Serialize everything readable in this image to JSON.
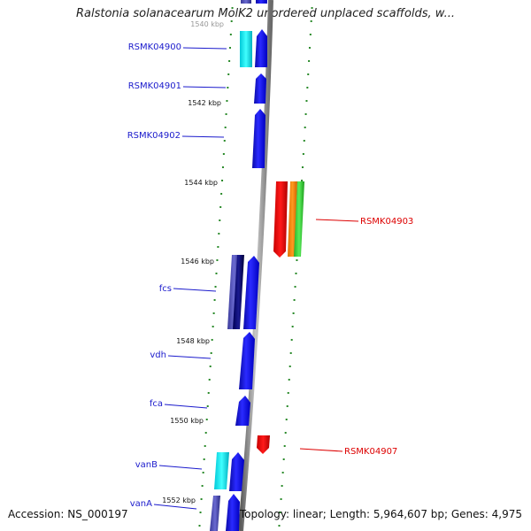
{
  "title": "Ralstonia solanacearum MolK2 unordered unplaced scaffolds, w...",
  "footer": {
    "accession": "Accession: NS_000197",
    "summary": "Topology: linear; Length: 5,964,607 bp; Genes: 4,975"
  },
  "colors": {
    "forward_label": "#1a1acc",
    "reverse_label": "#dd0000",
    "tick": "#2a8a2a",
    "backbone": "#888888"
  },
  "kbp_labels": [
    "1540 kbp",
    "1542 kbp",
    "1544 kbp",
    "1546 kbp",
    "1548 kbp",
    "1550 kbp",
    "1552 kbp"
  ],
  "gene_labels": [
    {
      "text": "RSMK04900",
      "strand": "forward"
    },
    {
      "text": "RSMK04901",
      "strand": "forward"
    },
    {
      "text": "RSMK04902",
      "strand": "forward"
    },
    {
      "text": "RSMK04903",
      "strand": "reverse"
    },
    {
      "text": "fcs",
      "strand": "forward"
    },
    {
      "text": "vdh",
      "strand": "forward"
    },
    {
      "text": "fca",
      "strand": "forward"
    },
    {
      "text": "RSMK04907",
      "strand": "reverse"
    },
    {
      "text": "vanB",
      "strand": "forward"
    },
    {
      "text": "vanA",
      "strand": "forward"
    }
  ]
}
